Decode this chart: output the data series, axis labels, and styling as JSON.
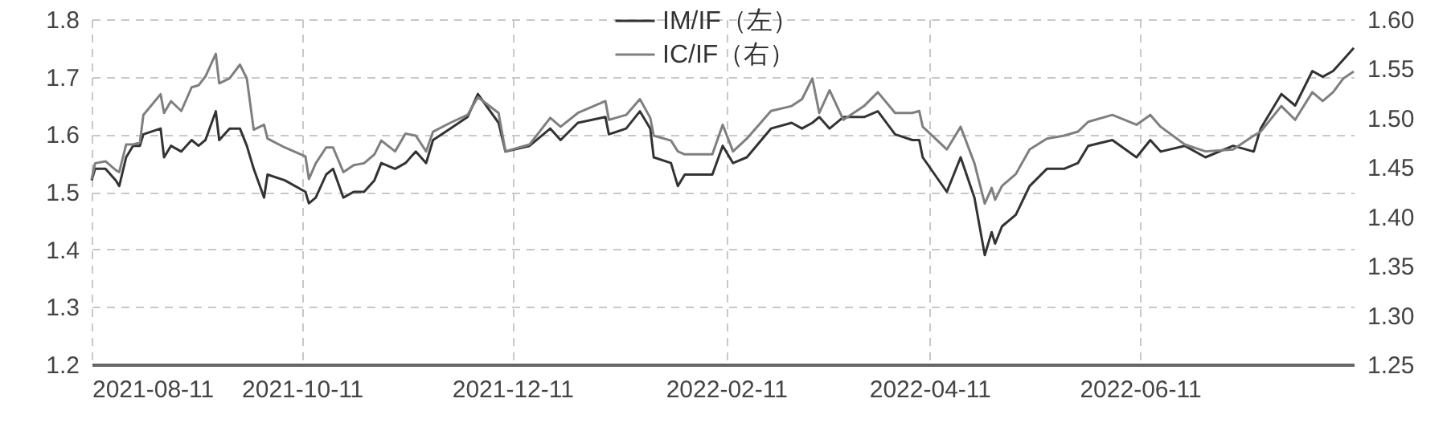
{
  "chart_data": {
    "type": "line",
    "x": [
      "2021-08-11",
      "2021-08-12",
      "2021-08-15",
      "2021-08-18",
      "2021-08-19",
      "2021-08-21",
      "2021-08-23",
      "2021-08-25",
      "2021-08-26",
      "2021-08-31",
      "2021-09-01",
      "2021-09-03",
      "2021-09-06",
      "2021-09-09",
      "2021-09-11",
      "2021-09-13",
      "2021-09-16",
      "2021-09-17",
      "2021-09-20",
      "2021-09-23",
      "2021-09-25",
      "2021-09-27",
      "2021-09-30",
      "2021-10-01",
      "2021-10-06",
      "2021-10-12",
      "2021-10-13",
      "2021-10-15",
      "2021-10-18",
      "2021-10-20",
      "2021-10-23",
      "2021-10-26",
      "2021-10-29",
      "2021-11-01",
      "2021-11-03",
      "2021-11-07",
      "2021-11-10",
      "2021-11-13",
      "2021-11-16",
      "2021-11-18",
      "2021-11-23",
      "2021-11-28",
      "2021-12-01",
      "2021-12-07",
      "2021-12-09",
      "2021-12-16",
      "2021-12-22",
      "2021-12-25",
      "2021-12-30",
      "2022-01-07",
      "2022-01-08",
      "2022-01-13",
      "2022-01-17",
      "2022-01-20",
      "2022-01-21",
      "2022-01-26",
      "2022-01-28",
      "2022-01-30",
      "2022-02-07",
      "2022-02-10",
      "2022-02-13",
      "2022-02-17",
      "2022-02-24",
      "2022-03-02",
      "2022-03-05",
      "2022-03-08",
      "2022-03-10",
      "2022-03-13",
      "2022-03-17",
      "2022-03-23",
      "2022-03-27",
      "2022-04-01",
      "2022-04-06",
      "2022-04-08",
      "2022-04-09",
      "2022-04-16",
      "2022-04-20",
      "2022-04-24",
      "2022-04-27",
      "2022-04-29",
      "2022-04-30",
      "2022-05-02",
      "2022-05-06",
      "2022-05-10",
      "2022-05-15",
      "2022-05-20",
      "2022-05-24",
      "2022-05-27",
      "2022-06-03",
      "2022-06-10",
      "2022-06-14",
      "2022-06-17",
      "2022-06-24",
      "2022-06-30",
      "2022-07-08",
      "2022-07-14",
      "2022-07-16",
      "2022-07-22",
      "2022-07-26",
      "2022-07-31",
      "2022-08-03",
      "2022-08-06",
      "2022-08-09",
      "2022-08-12"
    ],
    "series": [
      {
        "name": "IM/IF（左）",
        "color": "#333333",
        "values": [
          1.52,
          1.54,
          1.54,
          1.52,
          1.51,
          1.56,
          1.58,
          1.58,
          1.6,
          1.61,
          1.56,
          1.58,
          1.57,
          1.59,
          1.58,
          1.59,
          1.64,
          1.59,
          1.61,
          1.61,
          1.58,
          1.54,
          1.49,
          1.53,
          1.52,
          1.5,
          1.48,
          1.49,
          1.53,
          1.54,
          1.49,
          1.5,
          1.5,
          1.52,
          1.55,
          1.54,
          1.55,
          1.57,
          1.55,
          1.59,
          1.61,
          1.63,
          1.67,
          1.62,
          1.57,
          1.58,
          1.61,
          1.59,
          1.62,
          1.63,
          1.6,
          1.61,
          1.64,
          1.61,
          1.56,
          1.55,
          1.51,
          1.53,
          1.53,
          1.58,
          1.55,
          1.56,
          1.61,
          1.62,
          1.61,
          1.62,
          1.63,
          1.61,
          1.63,
          1.63,
          1.64,
          1.6,
          1.59,
          1.59,
          1.56,
          1.5,
          1.56,
          1.49,
          1.39,
          1.43,
          1.41,
          1.44,
          1.46,
          1.51,
          1.54,
          1.54,
          1.55,
          1.58,
          1.59,
          1.56,
          1.59,
          1.57,
          1.58,
          1.56,
          1.58,
          1.57,
          1.61,
          1.67,
          1.65,
          1.71,
          1.7,
          1.71,
          1.73,
          1.75
        ]
      },
      {
        "name": "IC/IF（右）",
        "color": "#7f7f7f",
        "axis": "y2",
        "values": [
          1.438,
          1.454,
          1.456,
          1.447,
          1.445,
          1.473,
          1.473,
          1.475,
          1.503,
          1.524,
          1.505,
          1.517,
          1.507,
          1.531,
          1.533,
          1.542,
          1.565,
          1.535,
          1.54,
          1.554,
          1.54,
          1.488,
          1.493,
          1.479,
          1.47,
          1.461,
          1.438,
          1.454,
          1.47,
          1.47,
          1.445,
          1.452,
          1.454,
          1.463,
          1.477,
          1.466,
          1.484,
          1.482,
          1.466,
          1.486,
          1.495,
          1.503,
          1.521,
          1.505,
          1.466,
          1.473,
          1.5,
          1.491,
          1.505,
          1.517,
          1.498,
          1.503,
          1.519,
          1.5,
          1.482,
          1.477,
          1.466,
          1.463,
          1.463,
          1.493,
          1.466,
          1.479,
          1.507,
          1.512,
          1.519,
          1.54,
          1.505,
          1.528,
          1.498,
          1.512,
          1.526,
          1.505,
          1.505,
          1.507,
          1.491,
          1.468,
          1.491,
          1.454,
          1.413,
          1.429,
          1.417,
          1.431,
          1.443,
          1.468,
          1.479,
          1.482,
          1.486,
          1.496,
          1.503,
          1.493,
          1.503,
          1.491,
          1.473,
          1.466,
          1.468,
          1.482,
          1.486,
          1.512,
          1.498,
          1.526,
          1.517,
          1.526,
          1.54,
          1.547
        ]
      }
    ],
    "xlim": [
      "2021-08-11",
      "2022-08-12"
    ],
    "xticks": [
      "2021-08-11",
      "2021-10-11",
      "2021-12-11",
      "2022-02-11",
      "2022-04-11",
      "2022-06-11"
    ],
    "ylim": [
      1.2,
      1.8
    ],
    "yticks": [
      1.2,
      1.3,
      1.4,
      1.5,
      1.6,
      1.7,
      1.8
    ],
    "y2lim": [
      1.25,
      1.6
    ],
    "y2ticks": [
      {
        "value": 1.25,
        "label": "1.25"
      },
      {
        "value": 1.3,
        "label": "1.30"
      },
      {
        "value": 1.35,
        "label": "1.35"
      },
      {
        "value": 1.4,
        "label": "1.40"
      },
      {
        "value": 1.45,
        "label": "1.45"
      },
      {
        "value": 1.5,
        "label": "1.50"
      },
      {
        "value": 1.55,
        "label": "1.55"
      },
      {
        "value": 1.6,
        "label": "1.60"
      }
    ],
    "grid": true,
    "legend": "top"
  }
}
